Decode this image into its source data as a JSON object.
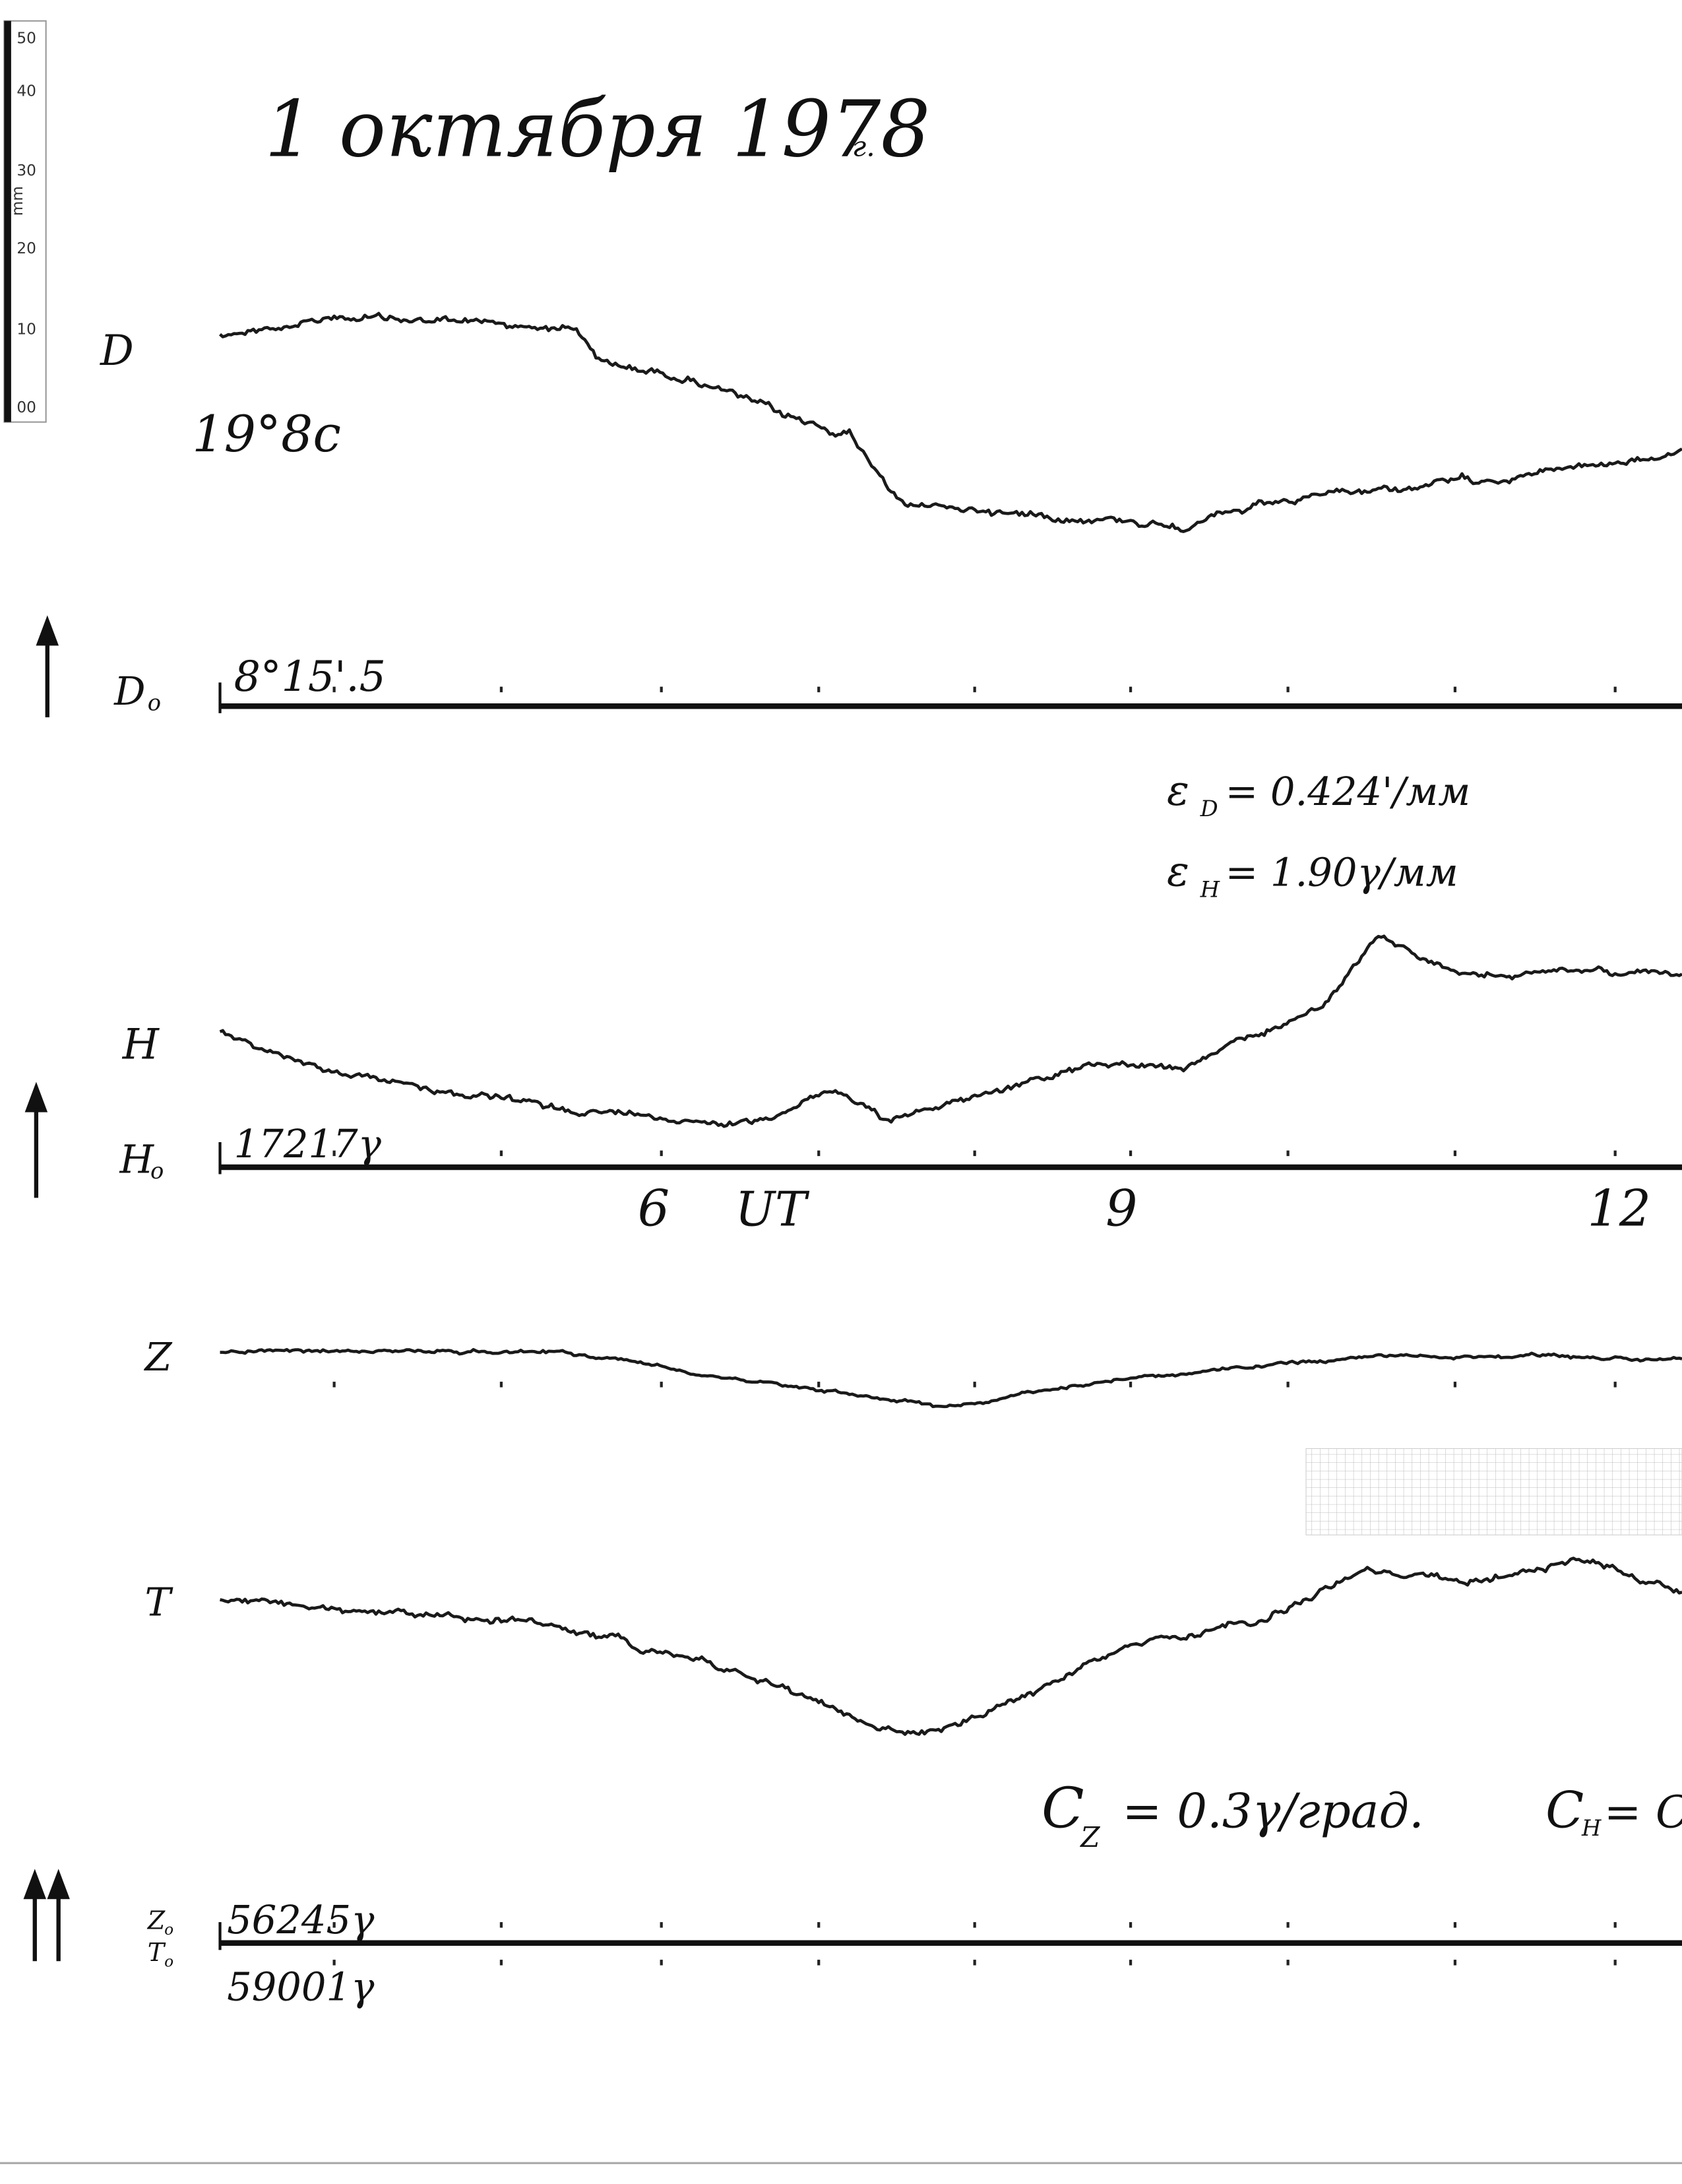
{
  "header": {
    "title": "1 октября 1978",
    "title_suffix": "г."
  },
  "ruler": {
    "labels": [
      "50",
      "40",
      "30",
      "mm",
      "20",
      "10",
      "00"
    ]
  },
  "traces": [
    {
      "label": "D",
      "note": "19°8c"
    },
    {
      "label": "H"
    },
    {
      "label": "Z"
    },
    {
      "label": "T"
    }
  ],
  "baselines": [
    {
      "label": "D",
      "label_sub": "o",
      "value": "8°15'.5"
    },
    {
      "label": "H",
      "label_sub": "o",
      "value": "17217γ"
    },
    {
      "label": "Z",
      "label_sub": "o",
      "value": "56245γ",
      "label2": "T",
      "label2_sub": "o",
      "value2": "59001γ"
    }
  ],
  "time_axis": {
    "labels": [
      "6",
      "UT",
      "9",
      "12"
    ]
  },
  "scales": {
    "epsilon_d": {
      "symbol": "ε",
      "sub": "D",
      "rest": "= 0.424'/мм"
    },
    "epsilon_h": {
      "symbol": "ε",
      "sub": "H",
      "rest": "= 1.90γ/мм"
    },
    "c_z": {
      "symbol": "C",
      "sub": "Z",
      "rest": "= 0.3γ/град."
    },
    "c_h": {
      "symbol": "C",
      "sub": "H",
      "rest": "= C"
    }
  }
}
